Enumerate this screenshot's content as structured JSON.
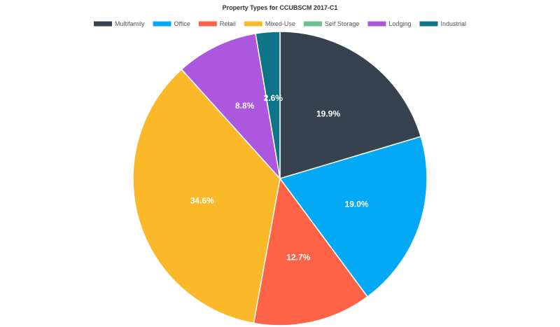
{
  "chart_data": {
    "type": "pie",
    "title": "Property Types for CCUBSCM 2017-C1",
    "legend_position": "top",
    "series": [
      {
        "name": "Multifamily",
        "value": 19.9,
        "label": "19.9%",
        "color": "#36434f"
      },
      {
        "name": "Office",
        "value": 19.0,
        "label": "19.0%",
        "color": "#03a9f4"
      },
      {
        "name": "Retail",
        "value": 12.7,
        "label": "12.7%",
        "color": "#ff6347"
      },
      {
        "name": "Mixed-Use",
        "value": 34.6,
        "label": "34.6%",
        "color": "#fbb829"
      },
      {
        "name": "Self Storage",
        "value": 0.0,
        "label": "",
        "color": "#6cc18e"
      },
      {
        "name": "Lodging",
        "value": 8.8,
        "label": "8.8%",
        "color": "#ab57de"
      },
      {
        "name": "Industrial",
        "value": 2.6,
        "label": "2.6%",
        "color": "#0e7488"
      }
    ]
  }
}
